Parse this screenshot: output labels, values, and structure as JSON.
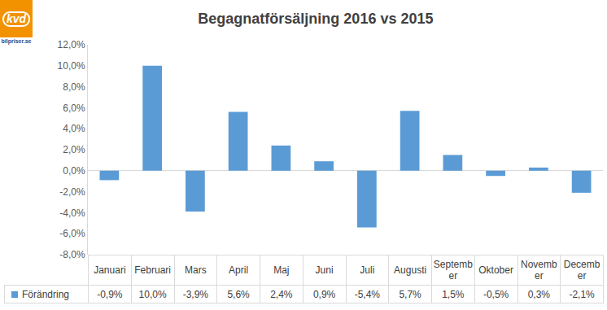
{
  "chart_data": {
    "type": "bar",
    "title": "Begagnatförsäljning 2016 vs 2015",
    "annotations": [
      "kvd",
      "bilpriser.se"
    ],
    "categories": [
      "Januari",
      "Februari",
      "Mars",
      "April",
      "Maj",
      "Juni",
      "Juli",
      "Augusti",
      "September",
      "Oktober",
      "November",
      "December"
    ],
    "series": [
      {
        "name": "Förändring",
        "color": "#5b9bd5",
        "values": [
          -0.9,
          10.0,
          -3.9,
          5.6,
          2.4,
          0.9,
          -5.4,
          5.7,
          1.5,
          -0.5,
          0.3,
          -2.1
        ],
        "value_labels": [
          "-0,9%",
          "10,0%",
          "-3,9%",
          "5,6%",
          "2,4%",
          "0,9%",
          "-5,4%",
          "5,7%",
          "1,5%",
          "-0,5%",
          "0,3%",
          "-2,1%"
        ]
      }
    ],
    "ylim": [
      -8,
      12
    ],
    "yticks": [
      {
        "value": -8,
        "label": "-8,0%"
      },
      {
        "value": -6,
        "label": "-6,0%"
      },
      {
        "value": -4,
        "label": "-4,0%"
      },
      {
        "value": -2,
        "label": "-2,0%"
      },
      {
        "value": 0,
        "label": "0,0%"
      },
      {
        "value": 2,
        "label": "2,0%"
      },
      {
        "value": 4,
        "label": "4,0%"
      },
      {
        "value": 6,
        "label": "6,0%"
      },
      {
        "value": 8,
        "label": "8,0%"
      },
      {
        "value": 10,
        "label": "10,0%"
      },
      {
        "value": 12,
        "label": "12,0%"
      }
    ],
    "grid": false,
    "data_labels": false
  }
}
